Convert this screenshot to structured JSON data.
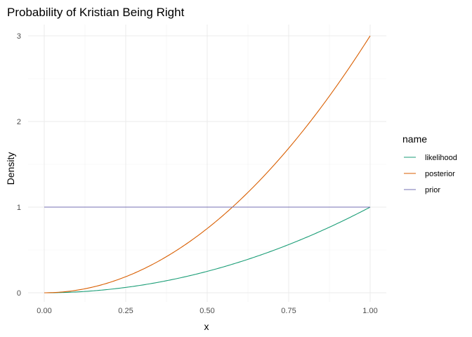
{
  "chart_data": {
    "type": "line",
    "title": "Probability of Kristian Being Right",
    "xlabel": "x",
    "ylabel": "Density",
    "xlim": [
      0,
      1
    ],
    "ylim": [
      0,
      3
    ],
    "x_ticks": [
      0,
      0.25,
      0.5,
      0.75,
      1
    ],
    "x_tick_labels": [
      "0.00",
      "0.25",
      "0.50",
      "0.75",
      "1.00"
    ],
    "y_ticks": [
      0,
      1,
      2,
      3
    ],
    "y_tick_labels": [
      "0",
      "1",
      "2",
      "3"
    ],
    "grid": true,
    "legend": {
      "title": "name",
      "position": "right"
    },
    "x": [
      0,
      0.1,
      0.2,
      0.3,
      0.4,
      0.5,
      0.6,
      0.7,
      0.8,
      0.9,
      1.0
    ],
    "series": [
      {
        "name": "likelihood",
        "color": "#1b9e77",
        "values": [
          0,
          0.01,
          0.04,
          0.09,
          0.16,
          0.25,
          0.36,
          0.49,
          0.64,
          0.81,
          1.0
        ]
      },
      {
        "name": "posterior",
        "color": "#d95f02",
        "values": [
          0,
          0.03,
          0.12,
          0.27,
          0.48,
          0.75,
          1.08,
          1.47,
          1.92,
          2.43,
          3.0
        ]
      },
      {
        "name": "prior",
        "color": "#7570b3",
        "values": [
          1,
          1,
          1,
          1,
          1,
          1,
          1,
          1,
          1,
          1,
          1
        ]
      }
    ]
  }
}
